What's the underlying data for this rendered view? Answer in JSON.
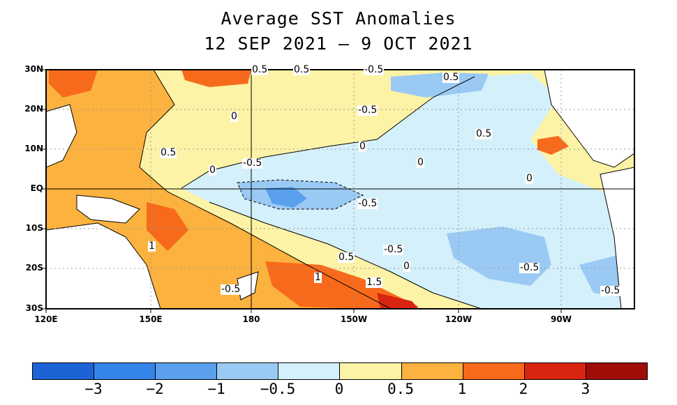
{
  "title_line1": "Average SST Anomalies",
  "title_line2": "12 SEP 2021 – 9 OCT 2021",
  "y_axis": [
    "30N",
    "20N",
    "10N",
    "EQ",
    "10S",
    "20S",
    "30S"
  ],
  "x_axis": [
    "120E",
    "150E",
    "180",
    "150W",
    "120W",
    "90W"
  ],
  "contour_labels": [
    "0.5",
    "0",
    "-0.5",
    "0.5",
    "-0.5",
    "0",
    "-0.5",
    "0",
    "0",
    "0.5",
    "-0.5",
    "1",
    "0.5",
    "1",
    "1.5",
    "-0.5",
    "0",
    "-0.5",
    "-0.5",
    "-0.5",
    "0.5",
    "0",
    "0.5"
  ],
  "colorbar": {
    "colors": [
      "#1c64d6",
      "#3584e8",
      "#5aa0ec",
      "#9acaf4",
      "#d4f0fb",
      "#fdf3a6",
      "#fbb23e",
      "#f76a1c",
      "#d92412",
      "#a00d06"
    ],
    "ticks": [
      "−3",
      "−2",
      "−1",
      "−0.5",
      "0",
      "0.5",
      "1",
      "2",
      "3"
    ]
  },
  "colors": {
    "land": "#ffffff",
    "weak_negative": "#d4f0fb",
    "moderate_negative": "#9acaf4",
    "strong_negative": "#5aa0ec",
    "weak_positive": "#fdf3a6",
    "moderate_positive": "#fbb23e",
    "strong_positive": "#f76a1c",
    "very_strong_positive": "#d92412"
  }
}
